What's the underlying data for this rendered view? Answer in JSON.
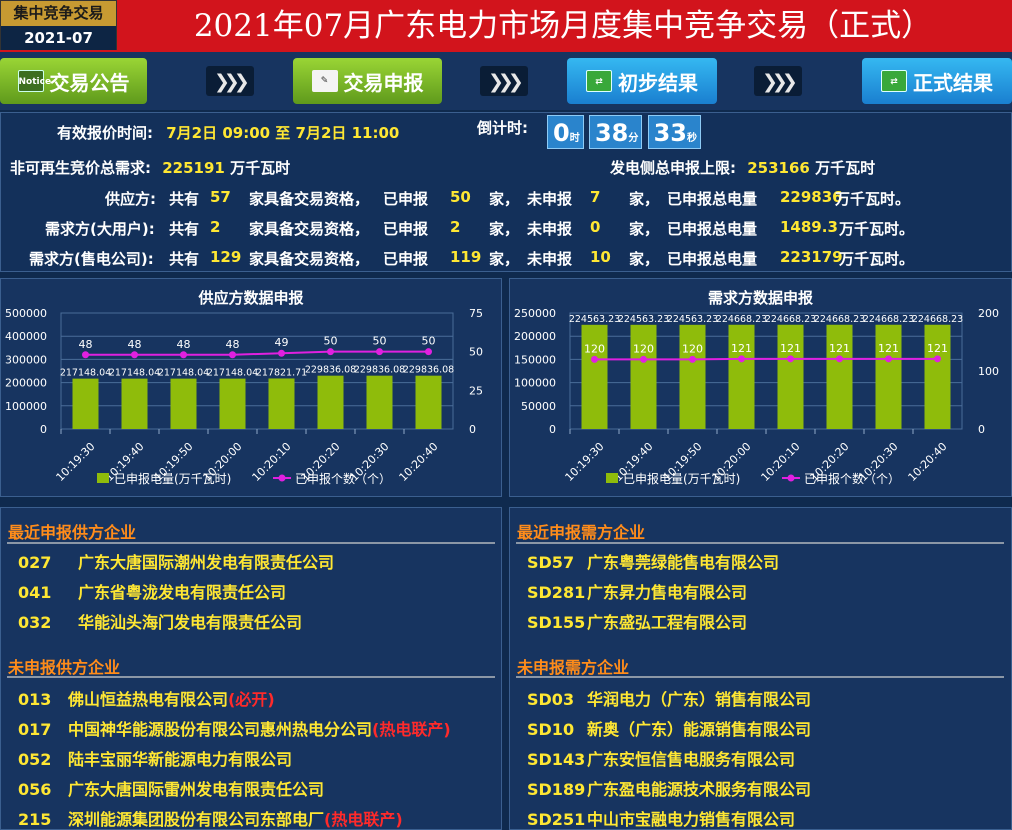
{
  "badge": {
    "line1": "集中竞争交易",
    "line2": "2021-07"
  },
  "title": "2021年07月广东电力市场月度集中竞争交易（正式）",
  "nav": {
    "btn1": "交易公告",
    "btn1_icon": "Notice",
    "btn2": "交易申报",
    "btn3": "初步结果",
    "btn4": "正式结果"
  },
  "info": {
    "valid_time_label": "有效报价时间:",
    "valid_time": "7月2日 09:00 至 7月2日 11:00",
    "countdown_label": "倒计时:",
    "cd_h": "0",
    "cd_h_unit": "时",
    "cd_m": "38",
    "cd_m_unit": "分",
    "cd_s": "33",
    "cd_s_unit": "秒",
    "demand_label": "非可再生竞价总需求:",
    "demand_value": "225191",
    "demand_unit": "万千瓦时",
    "limit_label": "发电侧总申报上限:",
    "limit_value": "253166",
    "limit_unit": "万千瓦时",
    "rows": [
      {
        "label": "供应方:",
        "total": "57",
        "declared": "50",
        "undeclared": "7",
        "energy": "229836",
        "unit": "万千瓦时。"
      },
      {
        "label": "需求方(大用户):",
        "total": "2",
        "declared": "2",
        "undeclared": "0",
        "energy": "1489.3",
        "unit": "万千瓦时。"
      },
      {
        "label": "需求方(售电公司):",
        "total": "129",
        "declared": "119",
        "undeclared": "10",
        "energy": "223179",
        "unit": "万千瓦时。"
      }
    ],
    "w_total": "共有",
    "w_qual": "家具备交易资格，",
    "w_decl": "已申报",
    "w_jia": "家，",
    "w_undecl": "未申报",
    "w_jia2": "家，",
    "w_energy": "已申报总电量"
  },
  "chart_data": [
    {
      "type": "bar",
      "title": "供应方数据申报",
      "categories": [
        "10:19:30",
        "10:19:40",
        "10:19:50",
        "10:20:00",
        "10:20:10",
        "10:20:20",
        "10:20:30",
        "10:20:40"
      ],
      "series": [
        {
          "name": "已申报电量(万千瓦时)",
          "type": "bar",
          "axis": "left",
          "values": [
            217148.04,
            217148.04,
            217148.04,
            217148.04,
            217821.71,
            229836.08,
            229836.08,
            229836.08
          ]
        },
        {
          "name": "已申报个数（个）",
          "type": "line",
          "axis": "right",
          "values": [
            48,
            48,
            48,
            48,
            49,
            50,
            50,
            50
          ]
        }
      ],
      "ylim": [
        0,
        500000
      ],
      "yticks": [
        0,
        100000,
        200000,
        300000,
        400000,
        500000
      ],
      "y2lim": [
        0,
        75
      ],
      "y2ticks": [
        0,
        25,
        50,
        75
      ],
      "bar_labels": [
        "217148.04",
        "217148.04",
        "217148.04",
        "217148.04",
        "217821.71",
        "229836.08",
        "229836.08",
        "229836.08"
      ],
      "grid": true,
      "legend": "bottom"
    },
    {
      "type": "bar",
      "title": "需求方数据申报",
      "categories": [
        "10:19:30",
        "10:19:40",
        "10:19:50",
        "10:20:00",
        "10:20:10",
        "10:20:20",
        "10:20:30",
        "10:20:40"
      ],
      "series": [
        {
          "name": "已申报电量(万千瓦时)",
          "type": "bar",
          "axis": "left",
          "values": [
            224563.23,
            224563.23,
            224563.23,
            224668.23,
            224668.23,
            224668.23,
            224668.23,
            224668.23
          ]
        },
        {
          "name": "已申报个数（个）",
          "type": "line",
          "axis": "right",
          "values": [
            120,
            120,
            120,
            121,
            121,
            121,
            121,
            121
          ]
        }
      ],
      "ylim": [
        0,
        250000
      ],
      "yticks": [
        0,
        50000,
        100000,
        150000,
        200000,
        250000
      ],
      "y2lim": [
        0,
        200
      ],
      "y2ticks": [
        0,
        100,
        200
      ],
      "bar_labels": [
        "224563.23",
        "224563.23",
        "224563.23",
        "224668.23",
        "224668.23",
        "224668.23",
        "224668.23",
        "224668.23"
      ],
      "grid": true,
      "legend": "bottom"
    }
  ],
  "lists": {
    "recent_supply": {
      "title": "最近申报供方企业",
      "items": [
        {
          "code": "027",
          "name": "广东大唐国际潮州发电有限责任公司"
        },
        {
          "code": "041",
          "name": "广东省粤泷发电有限责任公司"
        },
        {
          "code": "032",
          "name": "华能汕头海门发电有限责任公司"
        }
      ]
    },
    "recent_demand": {
      "title": "最近申报需方企业",
      "items": [
        {
          "code": "SD57",
          "name": "广东粤莞绿能售电有限公司"
        },
        {
          "code": "SD281",
          "name": "广东昇力售电有限公司"
        },
        {
          "code": "SD155",
          "name": "广东盛弘工程有限公司"
        }
      ]
    },
    "undeclared_supply": {
      "title": "未申报供方企业",
      "items": [
        {
          "code": "013",
          "name": "佛山恒益热电有限公司",
          "note": "(必开)"
        },
        {
          "code": "017",
          "name": "中国神华能源股份有限公司惠州热电分公司",
          "note": "(热电联产)"
        },
        {
          "code": "052",
          "name": "陆丰宝丽华新能源电力有限公司",
          "note": ""
        },
        {
          "code": "056",
          "name": "广东大唐国际雷州发电有限责任公司",
          "note": ""
        },
        {
          "code": "215",
          "name": "深圳能源集团股份有限公司东部电厂",
          "note": "(热电联产)"
        }
      ]
    },
    "undeclared_demand": {
      "title": "未申报需方企业",
      "items": [
        {
          "code": "SD03",
          "name": "华润电力（广东）销售有限公司"
        },
        {
          "code": "SD10",
          "name": "新奥（广东）能源销售有限公司"
        },
        {
          "code": "SD143",
          "name": "广东安恒信售电服务有限公司"
        },
        {
          "code": "SD189",
          "name": "广东盈电能源技术服务有限公司"
        },
        {
          "code": "SD251",
          "name": "中山市宝融电力销售有限公司"
        }
      ]
    }
  },
  "colors": {
    "header": "#d2141c",
    "bar": "#8fbc0b",
    "line": "#e020e0",
    "accent_yellow": "#ffe733",
    "section_orange": "#ff8c1a"
  }
}
